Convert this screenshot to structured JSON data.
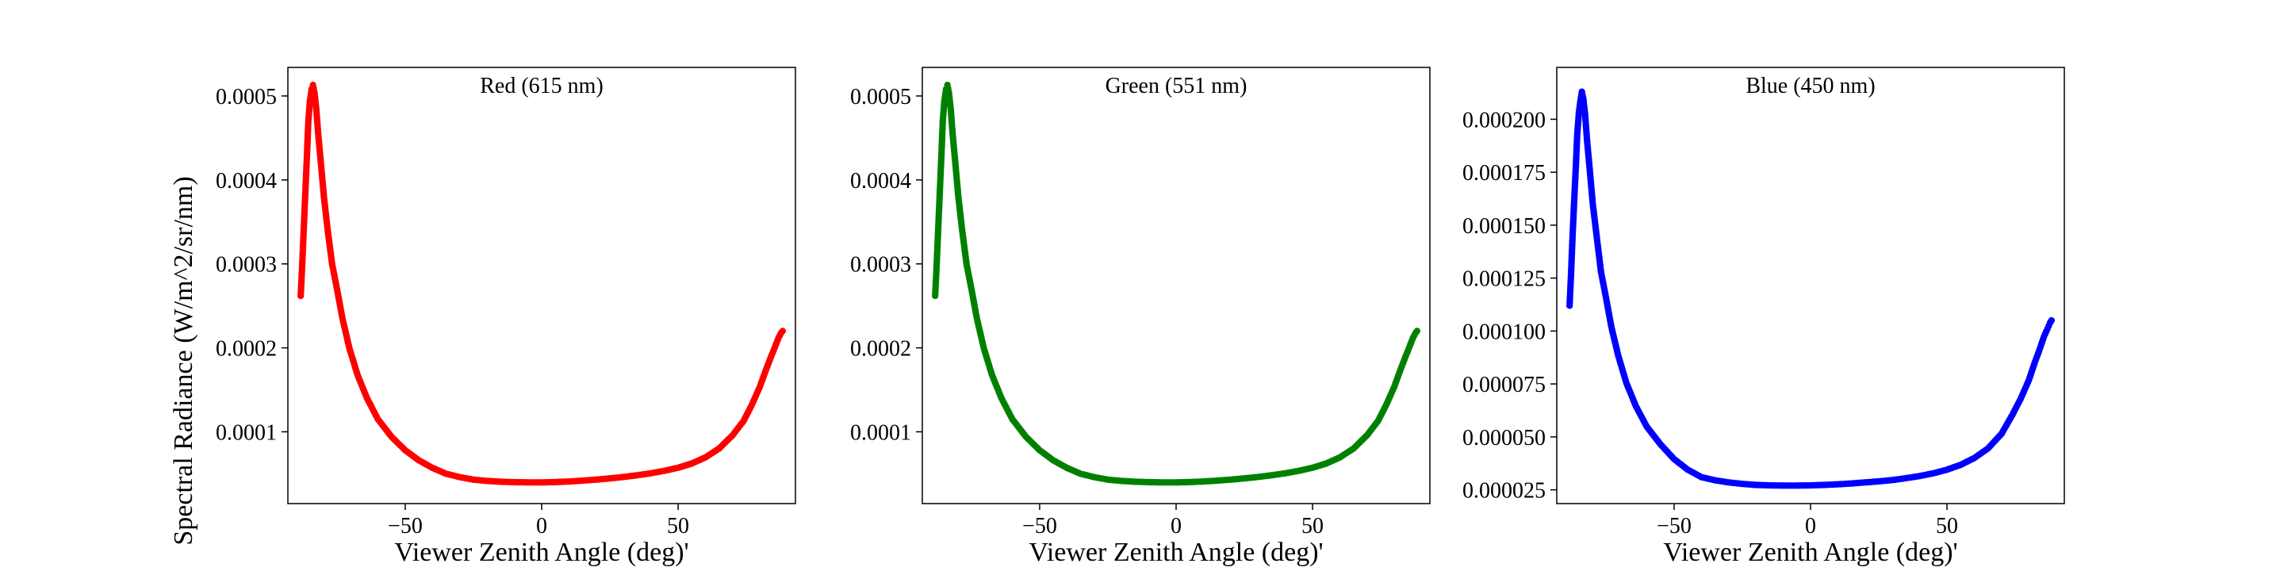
{
  "chart_data": [
    {
      "type": "scatter",
      "title": "Red (615 nm)",
      "xlabel": "Viewer Zenith Angle (deg)'",
      "ylabel": "Spectral Radiance (W/m^2/sr/nm)",
      "color": "#ff0000",
      "xlim": [
        -93,
        93
      ],
      "ylim": [
        1.45e-05,
        0.000534
      ],
      "xticks": [
        -50,
        0,
        50
      ],
      "xtick_labels": [
        "−50",
        "0",
        "50"
      ],
      "yticks": [
        0.0001,
        0.0002,
        0.0003,
        0.0004,
        0.0005
      ],
      "ytick_labels": [
        "0.0001",
        "0.0002",
        "0.0003",
        "0.0004",
        "0.0005"
      ],
      "grid": false,
      "x": [
        -88.3,
        -87.8,
        -87.2,
        -86.6,
        -86.0,
        -85.5,
        -84.9,
        -84.3,
        -83.8,
        -83.3,
        -82.6,
        -81.9,
        -80.9,
        -79.8,
        -78.4,
        -76.8,
        -75.0,
        -73.0,
        -70.5,
        -67.5,
        -64.0,
        -60.0,
        -55.0,
        -50.0,
        -45.0,
        -40.0,
        -35.0,
        -30.0,
        -25.0,
        -20.0,
        -15.0,
        -10.0,
        -5.0,
        0.0,
        5.0,
        10.0,
        15.0,
        20.0,
        25.0,
        30.0,
        35.0,
        40.0,
        45.0,
        50.0,
        55.0,
        60.0,
        65.0,
        70.0,
        74.0,
        77.0,
        80.0,
        82.0,
        84.0,
        85.5,
        86.8,
        87.8,
        88.3
      ],
      "y": [
        0.000262,
        0.000295,
        0.00034,
        0.000385,
        0.00043,
        0.00047,
        0.000495,
        0.000508,
        0.000513,
        0.000505,
        0.000485,
        0.000455,
        0.00042,
        0.00038,
        0.00034,
        0.0003,
        0.00027,
        0.000235,
        0.0002,
        0.000168,
        0.00014,
        0.000115,
        9.4e-05,
        7.8e-05,
        6.6e-05,
        5.7e-05,
        5e-05,
        4.6e-05,
        4.3e-05,
        4.15e-05,
        4.05e-05,
        4e-05,
        3.97e-05,
        3.97e-05,
        4.01e-05,
        4.08e-05,
        4.18e-05,
        4.3e-05,
        4.45e-05,
        4.62e-05,
        4.82e-05,
        5.06e-05,
        5.35e-05,
        5.72e-05,
        6.22e-05,
        6.95e-05,
        8e-05,
        9.6e-05,
        0.000113,
        0.000132,
        0.000154,
        0.000172,
        0.000189,
        0.000201,
        0.000212,
        0.000218,
        0.00022
      ]
    },
    {
      "type": "scatter",
      "title": "Green (551 nm)",
      "xlabel": "Viewer Zenith Angle (deg)'",
      "ylabel": "",
      "color": "#008000",
      "xlim": [
        -93,
        93
      ],
      "ylim": [
        1.45e-05,
        0.000534
      ],
      "xticks": [
        -50,
        0,
        50
      ],
      "xtick_labels": [
        "−50",
        "0",
        "50"
      ],
      "yticks": [
        0.0001,
        0.0002,
        0.0003,
        0.0004,
        0.0005
      ],
      "ytick_labels": [
        "0.0001",
        "0.0002",
        "0.0003",
        "0.0004",
        "0.0005"
      ],
      "grid": false,
      "x": [
        -88.3,
        -87.8,
        -87.2,
        -86.6,
        -86.0,
        -85.5,
        -84.9,
        -84.3,
        -83.8,
        -83.3,
        -82.6,
        -81.9,
        -80.9,
        -79.8,
        -78.4,
        -76.8,
        -75.0,
        -73.0,
        -70.5,
        -67.5,
        -64.0,
        -60.0,
        -55.0,
        -50.0,
        -45.0,
        -40.0,
        -35.0,
        -30.0,
        -25.0,
        -20.0,
        -15.0,
        -10.0,
        -5.0,
        0.0,
        5.0,
        10.0,
        15.0,
        20.0,
        25.0,
        30.0,
        35.0,
        40.0,
        45.0,
        50.0,
        55.0,
        60.0,
        65.0,
        70.0,
        74.0,
        77.0,
        80.0,
        82.0,
        84.0,
        85.5,
        86.8,
        87.8,
        88.3
      ],
      "y": [
        0.000262,
        0.000295,
        0.00034,
        0.000385,
        0.00043,
        0.00047,
        0.000495,
        0.000508,
        0.000513,
        0.000505,
        0.000485,
        0.000455,
        0.00042,
        0.00038,
        0.00034,
        0.0003,
        0.00027,
        0.000235,
        0.0002,
        0.000168,
        0.00014,
        0.000115,
        9.4e-05,
        7.8e-05,
        6.6e-05,
        5.7e-05,
        5e-05,
        4.6e-05,
        4.3e-05,
        4.15e-05,
        4.05e-05,
        4e-05,
        3.97e-05,
        3.97e-05,
        4.01e-05,
        4.08e-05,
        4.18e-05,
        4.3e-05,
        4.45e-05,
        4.62e-05,
        4.82e-05,
        5.06e-05,
        5.35e-05,
        5.72e-05,
        6.22e-05,
        6.95e-05,
        8e-05,
        9.6e-05,
        0.000113,
        0.000132,
        0.000154,
        0.000172,
        0.000189,
        0.000201,
        0.000212,
        0.000218,
        0.00022
      ]
    },
    {
      "type": "scatter",
      "title": "Blue (450 nm)",
      "xlabel": "Viewer Zenith Angle (deg)'",
      "ylabel": "",
      "color": "#0000ff",
      "xlim": [
        -93,
        93
      ],
      "ylim": [
        1.85e-05,
        0.0002245
      ],
      "xticks": [
        -50,
        0,
        50
      ],
      "xtick_labels": [
        "−50",
        "0",
        "50"
      ],
      "yticks": [
        2.5e-05,
        5e-05,
        7.5e-05,
        0.0001,
        0.000125,
        0.00015,
        0.000175,
        0.0002
      ],
      "ytick_labels": [
        "0.000025",
        "0.000050",
        "0.000075",
        "0.000100",
        "0.000125",
        "0.000150",
        "0.000175",
        "0.000200"
      ],
      "grid": false,
      "x": [
        -88.3,
        -87.8,
        -87.2,
        -86.6,
        -86.0,
        -85.5,
        -84.9,
        -84.3,
        -83.8,
        -83.3,
        -82.6,
        -81.9,
        -80.9,
        -79.8,
        -78.4,
        -76.8,
        -75.0,
        -73.0,
        -70.5,
        -67.5,
        -64.0,
        -60.0,
        -55.0,
        -50.0,
        -45.0,
        -40.0,
        -35.0,
        -30.0,
        -25.0,
        -20.0,
        -15.0,
        -10.0,
        -5.0,
        0.0,
        5.0,
        10.0,
        15.0,
        20.0,
        25.0,
        30.0,
        35.0,
        40.0,
        45.0,
        50.0,
        55.0,
        60.0,
        65.0,
        70.0,
        74.0,
        77.0,
        80.0,
        82.0,
        84.0,
        85.5,
        86.8,
        87.8,
        88.3
      ],
      "y": [
        0.000112,
        0.000126,
        0.000145,
        0.000162,
        0.000178,
        0.000193,
        0.000203,
        0.000209,
        0.000213,
        0.00021,
        0.000202,
        0.00019,
        0.000176,
        0.00016,
        0.000145,
        0.000128,
        0.000116,
        0.000102,
        8.85e-05,
        7.55e-05,
        6.45e-05,
        5.48e-05,
        4.65e-05,
        3.95e-05,
        3.45e-05,
        3.1e-05,
        2.95e-05,
        2.85e-05,
        2.78e-05,
        2.73e-05,
        2.71e-05,
        2.7e-05,
        2.7e-05,
        2.71e-05,
        2.73e-05,
        2.76e-05,
        2.8e-05,
        2.85e-05,
        2.9e-05,
        2.96e-05,
        3.05e-05,
        3.15e-05,
        3.28e-05,
        3.45e-05,
        3.68e-05,
        4e-05,
        4.45e-05,
        5.15e-05,
        6.05e-05,
        6.8e-05,
        7.68e-05,
        8.45e-05,
        9.15e-05,
        9.72e-05,
        0.000101,
        0.000104,
        0.000105
      ]
    }
  ]
}
